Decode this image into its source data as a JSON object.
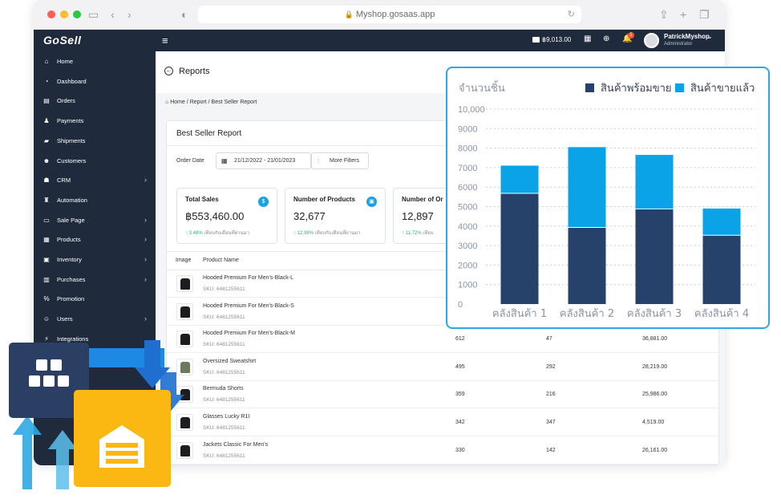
{
  "browser": {
    "url": "Myshop.gosaas.app"
  },
  "app": {
    "logo": "GoSell",
    "balance": "฿9,013.00",
    "notification_count": "1",
    "user_name": "PatrickMyshop",
    "user_role": "Administrator"
  },
  "sidebar": {
    "items": [
      {
        "label": "Home",
        "icon": "home-icon",
        "glyph": "⌂",
        "caret": false
      },
      {
        "label": "Dashboard",
        "icon": "dashboard-icon",
        "glyph": "◔",
        "caret": false
      },
      {
        "label": "Orders",
        "icon": "cart-icon",
        "glyph": "▤",
        "caret": false
      },
      {
        "label": "Payments",
        "icon": "money-bag-icon",
        "glyph": "♟",
        "caret": false
      },
      {
        "label": "Shipments",
        "icon": "truck-icon",
        "glyph": "▰",
        "caret": false
      },
      {
        "label": "Customers",
        "icon": "users-icon",
        "glyph": "☻",
        "caret": false
      },
      {
        "label": "CRM",
        "icon": "crm-icon",
        "glyph": "☗",
        "caret": true
      },
      {
        "label": "Automation",
        "icon": "robot-icon",
        "glyph": "♜",
        "caret": false
      },
      {
        "label": "Sale Page",
        "icon": "browser-icon",
        "glyph": "▭",
        "caret": true
      },
      {
        "label": "Products",
        "icon": "boxes-icon",
        "glyph": "▦",
        "caret": true
      },
      {
        "label": "Inventory",
        "icon": "warehouse-icon",
        "glyph": "▣",
        "caret": true
      },
      {
        "label": "Purchases",
        "icon": "basket-icon",
        "glyph": "▥",
        "caret": true
      },
      {
        "label": "Promotion",
        "icon": "percent-icon",
        "glyph": "%",
        "caret": false
      },
      {
        "label": "Users",
        "icon": "users-cog-icon",
        "glyph": "☺",
        "caret": true
      },
      {
        "label": "Integrations",
        "icon": "plug-icon",
        "glyph": "⚡",
        "caret": false
      }
    ]
  },
  "page": {
    "title": "Reports",
    "breadcrumb": "Home  /  Report  /  Best Seller Report",
    "card_title": "Best Seller Report",
    "order_date_label": "Order Date",
    "date_range": "21/12/2022 - 21/01/2023",
    "more_filters": "More Filters"
  },
  "stats": [
    {
      "title": "Total Sales",
      "value": "฿553,460.00",
      "pct": "3.48%",
      "note": "เทียบกับเดือนที่ผ่านมา"
    },
    {
      "title": "Number of Products",
      "value": "32,677",
      "pct": "12.98%",
      "note": "เทียบกับเดือนที่ผ่านมา"
    },
    {
      "title": "Number of Or",
      "value": "12,897",
      "pct": "11.72%",
      "note": "เทียบ"
    }
  ],
  "table": {
    "headers": {
      "image": "Image",
      "name": "Product Name"
    },
    "rows": [
      {
        "name": "Hooded Premium For Men's-Black-L",
        "sku": "SKU: 6481255611",
        "v1": "",
        "v2": "",
        "v3": "",
        "green": false
      },
      {
        "name": "Hooded Premium For Men's-Black-S",
        "sku": "SKU: 6481255611",
        "v1": "",
        "v2": "",
        "v3": "",
        "green": false
      },
      {
        "name": "Hooded Premium For Men's-Black-M",
        "sku": "SKU: 6481255611",
        "v1": "612",
        "v2": "47",
        "v3": "36,881.00",
        "green": false
      },
      {
        "name": "Oversized Sweatshirt",
        "sku": "SKU: 6481255611",
        "v1": "495",
        "v2": "292",
        "v3": "28,219.00",
        "green": true
      },
      {
        "name": "Bermuda Shorts",
        "sku": "SKU: 6481255611",
        "v1": "359",
        "v2": "216",
        "v3": "25,986.00",
        "green": false
      },
      {
        "name": "Glasses Lucky R1I",
        "sku": "SKU: 6481255611",
        "v1": "342",
        "v2": "347",
        "v3": "4,519.00",
        "green": false
      },
      {
        "name": "Jackets Classic For Men's",
        "sku": "SKU: 6481255611",
        "v1": "330",
        "v2": "142",
        "v3": "26,161.00",
        "green": false
      }
    ]
  },
  "colors": {
    "sidebar": "#1f2b3c",
    "accent": "#1ba1e2",
    "series_ready": "#26426b",
    "series_sold": "#0aa3e8"
  },
  "chart_data": {
    "type": "bar",
    "stacked": true,
    "ylabel": "จำนวนชิ้น",
    "categories": [
      "คลังสินค้า 1",
      "คลังสินค้า 2",
      "คลังสินค้า 3",
      "คลังสินค้า 4"
    ],
    "series": [
      {
        "name": "สินค้าพร้อมขาย",
        "values": [
          5700,
          3950,
          4900,
          3550
        ]
      },
      {
        "name": "สินค้าขายแล้ว",
        "values": [
          1400,
          4100,
          2750,
          1350
        ]
      }
    ],
    "ylim": [
      0,
      10000
    ],
    "yticks": [
      "0",
      "1000",
      "2000",
      "3000",
      "4000",
      "5000",
      "6000",
      "7000",
      "8000",
      "9000",
      "10,000"
    ],
    "legend": "top-right",
    "grid": true
  }
}
